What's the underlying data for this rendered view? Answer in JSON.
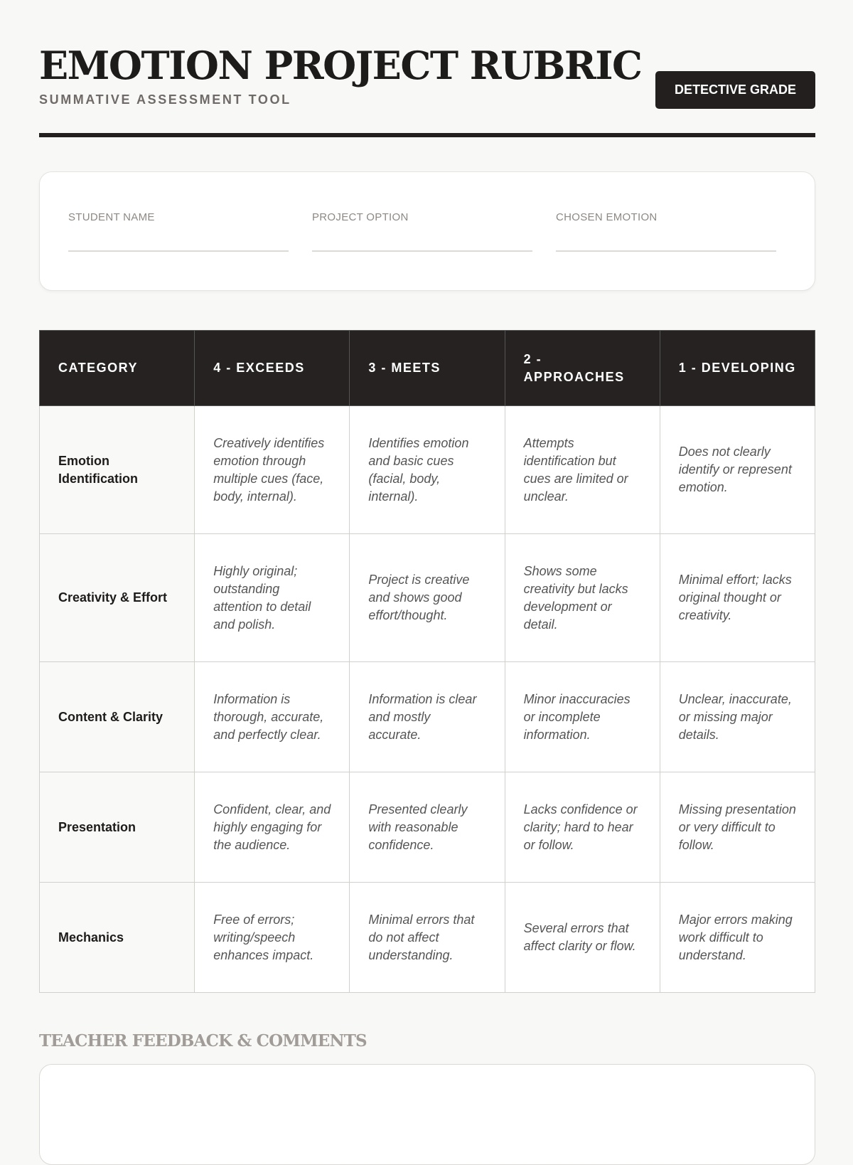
{
  "header": {
    "title": "EMOTION PROJECT RUBRIC",
    "subtitle": "SUMMATIVE ASSESSMENT TOOL",
    "badge": "DETECTIVE GRADE"
  },
  "info": {
    "fields": [
      {
        "label": "STUDENT NAME",
        "value": ""
      },
      {
        "label": "PROJECT OPTION",
        "value": ""
      },
      {
        "label": "CHOSEN EMOTION",
        "value": ""
      }
    ]
  },
  "rubric": {
    "headers": [
      "CATEGORY",
      "4 - EXCEEDS",
      "3 - MEETS",
      "2 - APPROACHES",
      "1 - DEVELOPING"
    ],
    "rows": [
      {
        "category": "Emotion Identification",
        "cells": [
          "Creatively identifies emotion through multiple cues (face, body, internal).",
          "Identifies emotion and basic cues (facial, body, internal).",
          "Attempts identification but cues are limited or unclear.",
          "Does not clearly identify or represent emotion."
        ]
      },
      {
        "category": "Creativity & Effort",
        "cells": [
          "Highly original; outstanding attention to detail and polish.",
          "Project is creative and shows good effort/thought.",
          "Shows some creativity but lacks development or detail.",
          "Minimal effort; lacks original thought or creativity."
        ]
      },
      {
        "category": "Content & Clarity",
        "cells": [
          "Information is thorough, accurate, and perfectly clear.",
          "Information is clear and mostly accurate.",
          "Minor inaccuracies or incomplete information.",
          "Unclear, inaccurate, or missing major details."
        ]
      },
      {
        "category": "Presentation",
        "cells": [
          "Confident, clear, and highly engaging for the audience.",
          "Presented clearly with reasonable confidence.",
          "Lacks confidence or clarity; hard to hear or follow.",
          "Missing presentation or very difficult to follow."
        ]
      },
      {
        "category": "Mechanics",
        "cells": [
          "Free of errors; writing/speech enhances impact.",
          "Minimal errors that do not affect understanding.",
          "Several errors that affect clarity or flow.",
          "Major errors making work difficult to understand."
        ]
      }
    ]
  },
  "feedback": {
    "label": "TEACHER FEEDBACK & COMMENTS",
    "value": ""
  }
}
